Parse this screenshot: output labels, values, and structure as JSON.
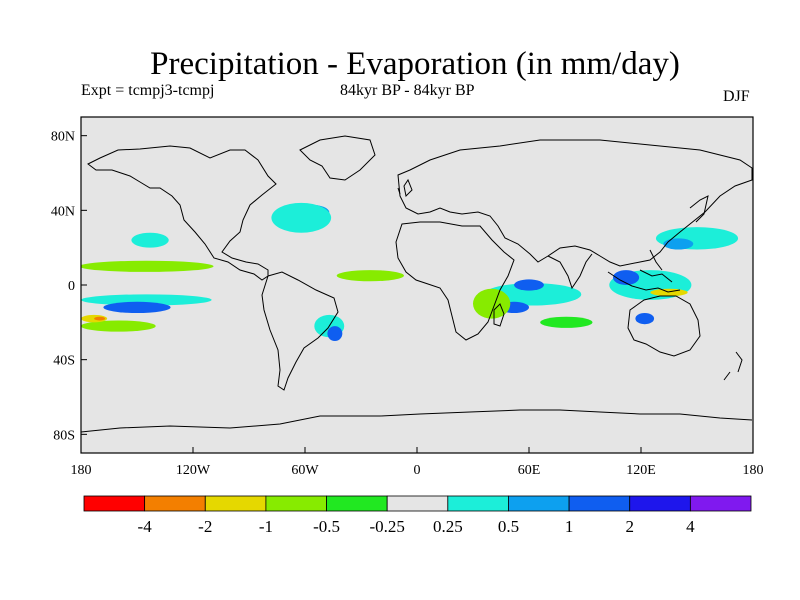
{
  "title": "Precipitation - Evaporation (in mm/day)",
  "subtitle_left": "Expt = tcmpj3-tcmpj",
  "subtitle_center": "84kyr BP - 84kyr BP",
  "subtitle_right": "DJF",
  "colors": {
    "land_background": "#e5e5e5",
    "coastline": "#000000"
  },
  "axes": {
    "x_ticks": [
      "180",
      "120W",
      "60W",
      "0",
      "60E",
      "120E",
      "180"
    ],
    "y_ticks": [
      "80N",
      "40N",
      "0",
      "40S",
      "80S"
    ]
  },
  "colorbar": {
    "colors": [
      "#ff0000",
      "#f37f00",
      "#e5d800",
      "#87eb00",
      "#21e821",
      "#e5e5e5",
      "#1ceed9",
      "#0da0ef",
      "#0f5ef0",
      "#1e16ec",
      "#8019ef"
    ],
    "labels": [
      "-4",
      "-2",
      "-1",
      "-0.5",
      "-0.25",
      "0.25",
      "0.5",
      "1",
      "2",
      "4"
    ]
  },
  "map": {
    "extent": {
      "lon": [
        -180,
        180
      ],
      "lat": [
        -90,
        90
      ]
    },
    "regions": [
      {
        "name": "north-atlantic-blue-patch",
        "color": "#0da0ef",
        "lon": -57,
        "lat": 39,
        "rx": 10,
        "ry": 4
      },
      {
        "name": "gulf-stream-cyan",
        "color": "#1ceed9",
        "lon": -62,
        "lat": 36,
        "rx": 16,
        "ry": 8
      },
      {
        "name": "north-pacific-cyan",
        "color": "#1ceed9",
        "lon": -143,
        "lat": 24,
        "rx": 10,
        "ry": 4
      },
      {
        "name": "tropical-pacific-green-band",
        "color": "#87eb00",
        "lon": -145,
        "lat": 10,
        "rx": 36,
        "ry": 3
      },
      {
        "name": "tropical-atlantic-green-band",
        "color": "#87eb00",
        "lon": -25,
        "lat": 5,
        "rx": 18,
        "ry": 3
      },
      {
        "name": "south-pacific-cyan-band",
        "color": "#1ceed9",
        "lon": -145,
        "lat": -8,
        "rx": 35,
        "ry": 3
      },
      {
        "name": "south-pacific-blue-core",
        "color": "#0f5ef0",
        "lon": -150,
        "lat": -12,
        "rx": 18,
        "ry": 3
      },
      {
        "name": "south-pacific-green-band",
        "color": "#87eb00",
        "lon": -160,
        "lat": -22,
        "rx": 20,
        "ry": 3
      },
      {
        "name": "south-pacific-yellow-spot",
        "color": "#e5d800",
        "lon": -173,
        "lat": -18,
        "rx": 7,
        "ry": 2
      },
      {
        "name": "south-pacific-orange-spot",
        "color": "#f37f00",
        "lon": -170,
        "lat": -18,
        "rx": 3,
        "ry": 1
      },
      {
        "name": "south-america-cyan",
        "color": "#1ceed9",
        "lon": -47,
        "lat": -22,
        "rx": 8,
        "ry": 6
      },
      {
        "name": "south-america-blue",
        "color": "#0f5ef0",
        "lon": -44,
        "lat": -26,
        "rx": 4,
        "ry": 4
      },
      {
        "name": "indian-ocean-cyan",
        "color": "#1ceed9",
        "lon": 62,
        "lat": -5,
        "rx": 26,
        "ry": 6
      },
      {
        "name": "indian-ocean-blue",
        "color": "#0f5ef0",
        "lon": 60,
        "lat": 0,
        "rx": 8,
        "ry": 3
      },
      {
        "name": "madagascar-blue",
        "color": "#0f5ef0",
        "lon": 52,
        "lat": -12,
        "rx": 8,
        "ry": 3
      },
      {
        "name": "east-africa-green",
        "color": "#87eb00",
        "lon": 40,
        "lat": -10,
        "rx": 10,
        "ry": 8
      },
      {
        "name": "maritime-continent-cyan",
        "color": "#1ceed9",
        "lon": 125,
        "lat": 0,
        "rx": 22,
        "ry": 8
      },
      {
        "name": "maritime-continent-blue",
        "color": "#0f5ef0",
        "lon": 112,
        "lat": 4,
        "rx": 7,
        "ry": 4
      },
      {
        "name": "maritime-continent-yellow",
        "color": "#e5d800",
        "lon": 135,
        "lat": -4,
        "rx": 10,
        "ry": 2
      },
      {
        "name": "australia-blue",
        "color": "#0f5ef0",
        "lon": 122,
        "lat": -18,
        "rx": 5,
        "ry": 3
      },
      {
        "name": "west-pacific-cyan",
        "color": "#1ceed9",
        "lon": 150,
        "lat": 25,
        "rx": 22,
        "ry": 6
      },
      {
        "name": "west-pacific-blue",
        "color": "#0da0ef",
        "lon": 140,
        "lat": 22,
        "rx": 8,
        "ry": 3
      },
      {
        "name": "southern-ocean-green",
        "color": "#21e821",
        "lon": 80,
        "lat": -20,
        "rx": 14,
        "ry": 3
      }
    ]
  }
}
